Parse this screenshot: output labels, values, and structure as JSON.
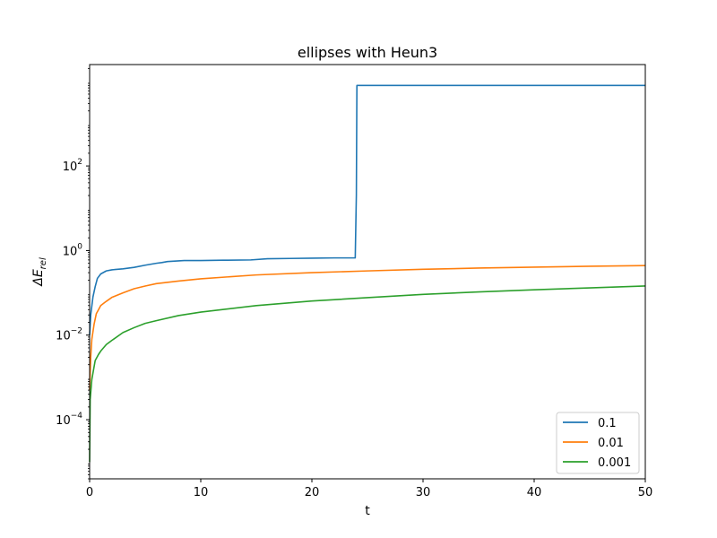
{
  "chart_data": {
    "type": "line",
    "title": "ellipses with Heun3",
    "xlabel": "t",
    "ylabel": "ΔE_rel",
    "xlim": [
      0,
      50
    ],
    "ylim": [
      4e-06,
      25000.0
    ],
    "yscale": "log",
    "x_ticks": [
      0,
      10,
      20,
      30,
      40,
      50
    ],
    "y_ticks": [
      {
        "value": 0.0001,
        "base": "10",
        "exp": "−4"
      },
      {
        "value": 0.01,
        "base": "10",
        "exp": "−2"
      },
      {
        "value": 1,
        "base": "10",
        "exp": "0"
      },
      {
        "value": 100,
        "base": "10",
        "exp": "2"
      }
    ],
    "grid": false,
    "legend_position": "lower right",
    "series": [
      {
        "name": "0.1",
        "color": "#1f77b4",
        "points": [
          [
            0,
            0.01
          ],
          [
            0.1,
            0.03
          ],
          [
            0.3,
            0.08
          ],
          [
            0.5,
            0.14
          ],
          [
            0.7,
            0.22
          ],
          [
            1.0,
            0.28
          ],
          [
            1.5,
            0.33
          ],
          [
            2.0,
            0.35
          ],
          [
            3.0,
            0.37
          ],
          [
            4.0,
            0.4
          ],
          [
            5.0,
            0.45
          ],
          [
            6.0,
            0.5
          ],
          [
            6.5,
            0.52
          ],
          [
            7.0,
            0.55
          ],
          [
            8.0,
            0.57
          ],
          [
            8.5,
            0.58
          ],
          [
            10,
            0.58
          ],
          [
            12,
            0.59
          ],
          [
            14.5,
            0.6
          ],
          [
            16,
            0.64
          ],
          [
            18,
            0.65
          ],
          [
            20,
            0.66
          ],
          [
            22,
            0.67
          ],
          [
            23.9,
            0.67
          ],
          [
            24.0,
            20
          ],
          [
            24.05,
            8000
          ],
          [
            30,
            8000
          ],
          [
            40,
            8000
          ],
          [
            50,
            8000
          ]
        ]
      },
      {
        "name": "0.01",
        "color": "#ff7f0e",
        "points": [
          [
            0,
            0.0005
          ],
          [
            0.1,
            0.003
          ],
          [
            0.2,
            0.008
          ],
          [
            0.4,
            0.018
          ],
          [
            0.6,
            0.032
          ],
          [
            0.8,
            0.04
          ],
          [
            1.0,
            0.05
          ],
          [
            1.5,
            0.063
          ],
          [
            2.0,
            0.078
          ],
          [
            3.0,
            0.1
          ],
          [
            4.0,
            0.125
          ],
          [
            5.0,
            0.145
          ],
          [
            6.0,
            0.165
          ],
          [
            8.0,
            0.19
          ],
          [
            10,
            0.215
          ],
          [
            15,
            0.265
          ],
          [
            20,
            0.3
          ],
          [
            25,
            0.33
          ],
          [
            30,
            0.36
          ],
          [
            35,
            0.385
          ],
          [
            40,
            0.405
          ],
          [
            45,
            0.425
          ],
          [
            50,
            0.44
          ]
        ]
      },
      {
        "name": "0.001",
        "color": "#2ca02c",
        "points": [
          [
            0,
            1e-05
          ],
          [
            0.05,
            0.0003
          ],
          [
            0.2,
            0.0009
          ],
          [
            0.5,
            0.0025
          ],
          [
            0.8,
            0.0035
          ],
          [
            1.0,
            0.0042
          ],
          [
            1.5,
            0.006
          ],
          [
            2.0,
            0.0075
          ],
          [
            3.0,
            0.0115
          ],
          [
            4.0,
            0.015
          ],
          [
            5.0,
            0.019
          ],
          [
            6.0,
            0.022
          ],
          [
            8.0,
            0.029
          ],
          [
            10,
            0.035
          ],
          [
            15,
            0.05
          ],
          [
            20,
            0.064
          ],
          [
            25,
            0.077
          ],
          [
            30,
            0.092
          ],
          [
            35,
            0.105
          ],
          [
            40,
            0.118
          ],
          [
            45,
            0.131
          ],
          [
            50,
            0.145
          ]
        ]
      }
    ]
  }
}
